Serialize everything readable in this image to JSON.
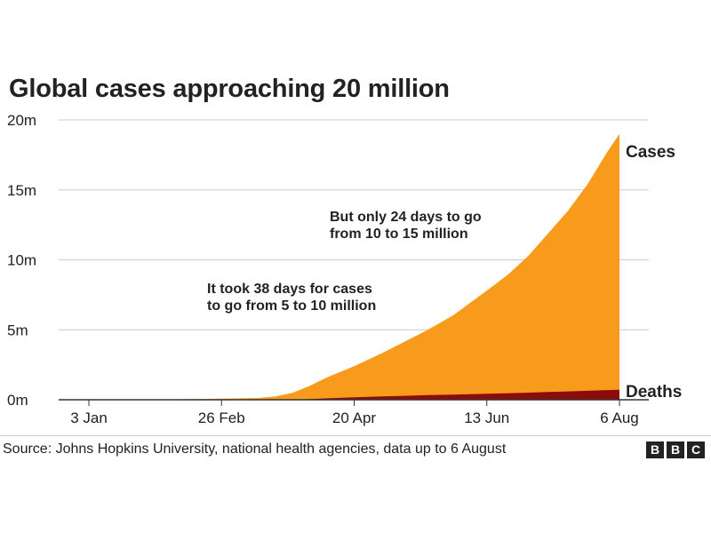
{
  "title": "Global cases approaching 20 million",
  "source": "Source: Johns Hopkins University, national health agencies, data up to 6 August",
  "logo": {
    "letters": [
      "B",
      "B",
      "C"
    ]
  },
  "colors": {
    "cases": "#f89b1c",
    "deaths": "#8a0c0c",
    "grid": "#cccccc",
    "text": "#222222"
  },
  "chart_data": {
    "type": "area",
    "title": "Global cases approaching 20 million",
    "xlabel": "",
    "ylabel": "",
    "x": [
      "2020-01-03",
      "2020-01-18",
      "2020-02-01",
      "2020-02-15",
      "2020-02-26",
      "2020-03-05",
      "2020-03-12",
      "2020-03-19",
      "2020-03-26",
      "2020-04-02",
      "2020-04-09",
      "2020-04-20",
      "2020-05-01",
      "2020-05-10",
      "2020-05-20",
      "2020-05-30",
      "2020-06-13",
      "2020-06-22",
      "2020-06-30",
      "2020-07-08",
      "2020-07-16",
      "2020-07-24",
      "2020-08-01",
      "2020-08-06"
    ],
    "series": [
      {
        "name": "Cases",
        "values": [
          0,
          0,
          0.01,
          0.05,
          0.08,
          0.1,
          0.13,
          0.24,
          0.5,
          1.0,
          1.6,
          2.4,
          3.3,
          4.1,
          5.0,
          6.0,
          7.8,
          9.0,
          10.3,
          11.9,
          13.5,
          15.4,
          17.7,
          19.0
        ]
      },
      {
        "name": "Deaths",
        "values": [
          0,
          0,
          0,
          0,
          0,
          0,
          0.005,
          0.01,
          0.02,
          0.05,
          0.1,
          0.17,
          0.24,
          0.28,
          0.33,
          0.37,
          0.43,
          0.47,
          0.51,
          0.55,
          0.6,
          0.64,
          0.69,
          0.72
        ]
      }
    ],
    "x_ticks": [
      "2020-01-03",
      "2020-02-26",
      "2020-04-20",
      "2020-06-13",
      "2020-08-06"
    ],
    "x_tick_labels": [
      "3 Jan",
      "26 Feb",
      "20 Apr",
      "13 Jun",
      "6 Aug"
    ],
    "ylim": [
      0,
      20
    ],
    "y_ticks": [
      0,
      5,
      10,
      15,
      20
    ],
    "y_tick_labels": [
      "0m",
      "5m",
      "10m",
      "15m",
      "20m"
    ],
    "grid": true,
    "series_labels": [
      "Cases",
      "Deaths"
    ],
    "annotations": [
      {
        "lines": [
          "It took 38 days for cases",
          "to go from 5 to 10 million"
        ]
      },
      {
        "lines": [
          "But only 24 days to go",
          "from 10 to 15 million"
        ]
      }
    ]
  }
}
